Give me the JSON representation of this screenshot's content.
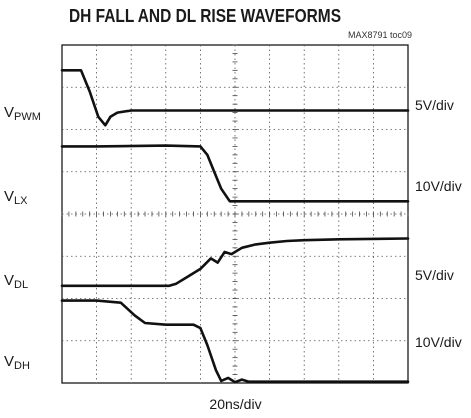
{
  "title": "DH FALL AND DL RISE WAVEFORMS",
  "figure_tag": "MAX8791 toc09",
  "x_scale": "20ns/div",
  "chart_data": {
    "type": "line",
    "grid": "10x8 dotted",
    "x_divisions": 10,
    "y_divisions": 8,
    "x_unit": "div",
    "channels": [
      {
        "label_main": "V",
        "label_sub": "PWM",
        "scale": "5V/div",
        "x": [
          0,
          0.55,
          0.8,
          1.05,
          1.25,
          1.4,
          1.6,
          2.0,
          10
        ],
        "y": [
          7.4,
          7.4,
          6.9,
          6.3,
          6.1,
          6.3,
          6.4,
          6.45,
          6.45
        ]
      },
      {
        "label_main": "V",
        "label_sub": "LX",
        "scale": "10V/div",
        "x": [
          0,
          1.0,
          3.0,
          4.0,
          4.2,
          4.4,
          4.6,
          4.85,
          5.1,
          10
        ],
        "y": [
          5.6,
          5.6,
          5.62,
          5.6,
          5.4,
          5.0,
          4.6,
          4.3,
          4.3,
          4.3
        ]
      },
      {
        "label_main": "V",
        "label_sub": "DL",
        "scale": "5V/div",
        "x": [
          0,
          3.1,
          3.3,
          3.6,
          4.0,
          4.3,
          4.5,
          4.7,
          4.9,
          5.2,
          5.6,
          6.0,
          6.5,
          7.0,
          8.0,
          10
        ],
        "y": [
          2.3,
          2.3,
          2.35,
          2.5,
          2.7,
          2.95,
          2.85,
          3.1,
          3.05,
          3.2,
          3.28,
          3.32,
          3.36,
          3.38,
          3.4,
          3.42
        ]
      },
      {
        "label_main": "V",
        "label_sub": "DH",
        "scale": "10V/div",
        "x": [
          0,
          1.0,
          1.7,
          2.1,
          2.4,
          3.0,
          3.8,
          4.0,
          4.2,
          4.45,
          4.6,
          4.8,
          5.0,
          5.2,
          5.4,
          10
        ],
        "y": [
          1.95,
          1.95,
          1.9,
          1.6,
          1.42,
          1.38,
          1.38,
          1.3,
          0.9,
          0.3,
          0.05,
          0.12,
          0.02,
          0.08,
          0.03,
          0.03
        ]
      }
    ]
  }
}
